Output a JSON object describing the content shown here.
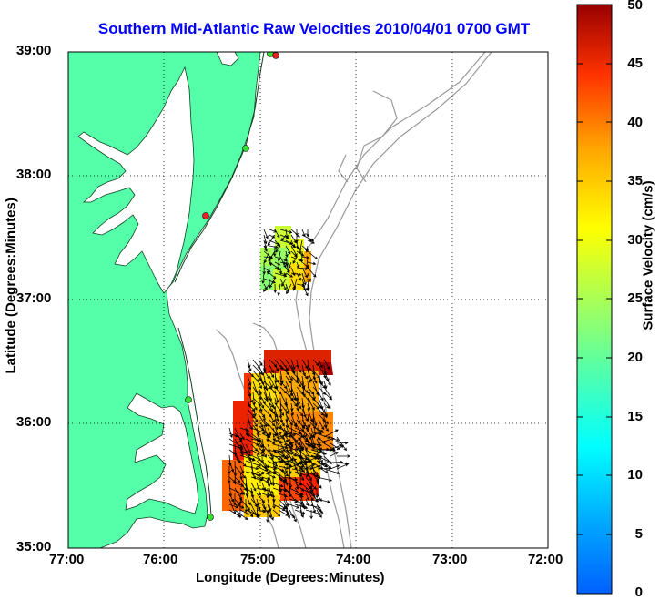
{
  "title": "Southern Mid-Atlantic Raw Velocities 2010/04/01 0700 GMT",
  "x_axis": {
    "label": "Longitude (Degrees:Minutes)",
    "ticks": [
      "77:00",
      "76:00",
      "75:00",
      "74:00",
      "73:00",
      "72:00"
    ]
  },
  "y_axis": {
    "label": "Latitude (Degrees:Minutes)",
    "ticks": [
      "39:00",
      "38:00",
      "37:00",
      "36:00",
      "35:00"
    ]
  },
  "colorbar": {
    "label": "Surface Velocity (cm/s)",
    "ticks": [
      "50",
      "45",
      "40",
      "35",
      "30",
      "25",
      "20",
      "15",
      "10",
      "5",
      "0"
    ],
    "min": 0,
    "max": 50,
    "colormap": "jet"
  },
  "colors": {
    "title": "#0000ff",
    "land": "#55ffaa",
    "water": "#ffffff",
    "bathymetry_contour": "#999999",
    "station_active": "#33dd33",
    "station_inactive": "#ee2222"
  },
  "map": {
    "lon_range": [
      "77:00",
      "72:00"
    ],
    "lat_range": [
      "35:00",
      "39:00"
    ],
    "grid": true,
    "stations": [
      {
        "status": "active"
      },
      {
        "status": "active"
      },
      {
        "status": "inactive"
      },
      {
        "status": "active"
      },
      {
        "status": "active"
      },
      {
        "status": "inactive"
      }
    ]
  }
}
